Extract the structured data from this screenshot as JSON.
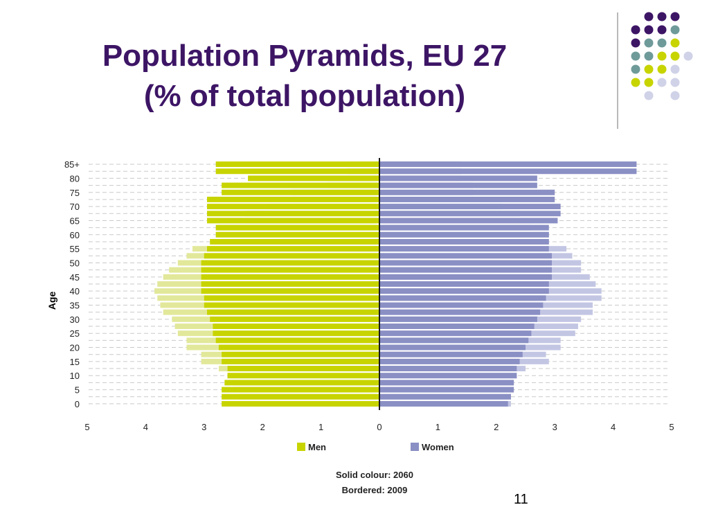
{
  "slide": {
    "title_line1": "Population Pyramids, EU 27",
    "title_line2": "(% of total population)",
    "page_number": "11"
  },
  "colors": {
    "title": "#3d1565",
    "men": "#c8d400",
    "women": "#8a8fc4",
    "men_2009_border": "#e2e89a",
    "women_2009_border": "#c3c6e3",
    "deco_purple": "#3d1565",
    "deco_teal": "#6f9a9a",
    "deco_yellow": "#c8d400",
    "deco_lavender": "#d0d2e8"
  },
  "chart_data": {
    "type": "bar",
    "orientation": "horizontal",
    "ylabel": "Age",
    "xlim": [
      -5,
      5
    ],
    "x_ticks": [
      "5",
      "4",
      "3",
      "2",
      "1",
      "0",
      "1",
      "2",
      "3",
      "4",
      "5"
    ],
    "categories": [
      "0",
      "",
      "5",
      "",
      "10",
      "",
      "15",
      "",
      "20",
      "",
      "25",
      "",
      "30",
      "",
      "35",
      "",
      "40",
      "",
      "45",
      "",
      "50",
      "",
      "55",
      "",
      "60",
      "",
      "65",
      "",
      "70",
      "",
      "75",
      "",
      "80",
      "",
      "85+"
    ],
    "series": [
      {
        "name": "Men",
        "year": "2060",
        "style": "solid",
        "values": [
          2.7,
          2.7,
          2.7,
          2.65,
          2.6,
          2.6,
          2.7,
          2.7,
          2.75,
          2.8,
          2.85,
          2.85,
          2.9,
          2.95,
          3.0,
          3.0,
          3.05,
          3.05,
          3.05,
          3.05,
          3.05,
          3.0,
          2.95,
          2.9,
          2.8,
          2.8,
          2.95,
          2.95,
          2.95,
          2.95,
          2.7,
          2.7,
          2.25,
          2.8,
          2.8
        ]
      },
      {
        "name": "Women",
        "year": "2060",
        "style": "solid",
        "values": [
          2.2,
          2.25,
          2.3,
          2.3,
          2.35,
          2.35,
          2.4,
          2.45,
          2.5,
          2.55,
          2.6,
          2.65,
          2.7,
          2.75,
          2.8,
          2.85,
          2.9,
          2.9,
          2.95,
          2.95,
          2.95,
          2.95,
          2.9,
          2.9,
          2.9,
          2.9,
          3.05,
          3.1,
          3.1,
          3.0,
          3.0,
          2.7,
          2.7,
          4.4,
          4.4
        ]
      },
      {
        "name": "Men",
        "year": "2009",
        "style": "bordered",
        "values": [
          2.4,
          2.4,
          2.5,
          2.5,
          2.6,
          2.75,
          3.05,
          3.05,
          3.3,
          3.3,
          3.45,
          3.5,
          3.55,
          3.7,
          3.75,
          3.8,
          3.85,
          3.8,
          3.7,
          3.6,
          3.45,
          3.3,
          3.2,
          2.9,
          2.8,
          2.75,
          2.3,
          2.3,
          1.9,
          1.5,
          1.5,
          0.9,
          0.9,
          0.55,
          0.55
        ]
      },
      {
        "name": "Women",
        "year": "2009",
        "style": "bordered",
        "values": [
          2.25,
          2.25,
          2.3,
          2.3,
          2.35,
          2.5,
          2.9,
          2.85,
          3.1,
          3.1,
          3.35,
          3.4,
          3.45,
          3.65,
          3.65,
          3.8,
          3.8,
          3.7,
          3.6,
          3.45,
          3.45,
          3.3,
          3.2,
          2.9,
          2.9,
          2.6,
          2.6,
          2.4,
          2.1,
          2.1,
          1.6,
          1.6,
          1.4,
          1.4,
          1.4
        ]
      }
    ],
    "legend": {
      "position": "bottom-center",
      "entries": [
        {
          "label": "Men",
          "color": "#c8d400"
        },
        {
          "label": "Women",
          "color": "#8a8fc4"
        }
      ],
      "note_line1": "Solid colour: 2060",
      "note_line2": "Bordered: 2009"
    },
    "grid": "dashed horizontal"
  }
}
